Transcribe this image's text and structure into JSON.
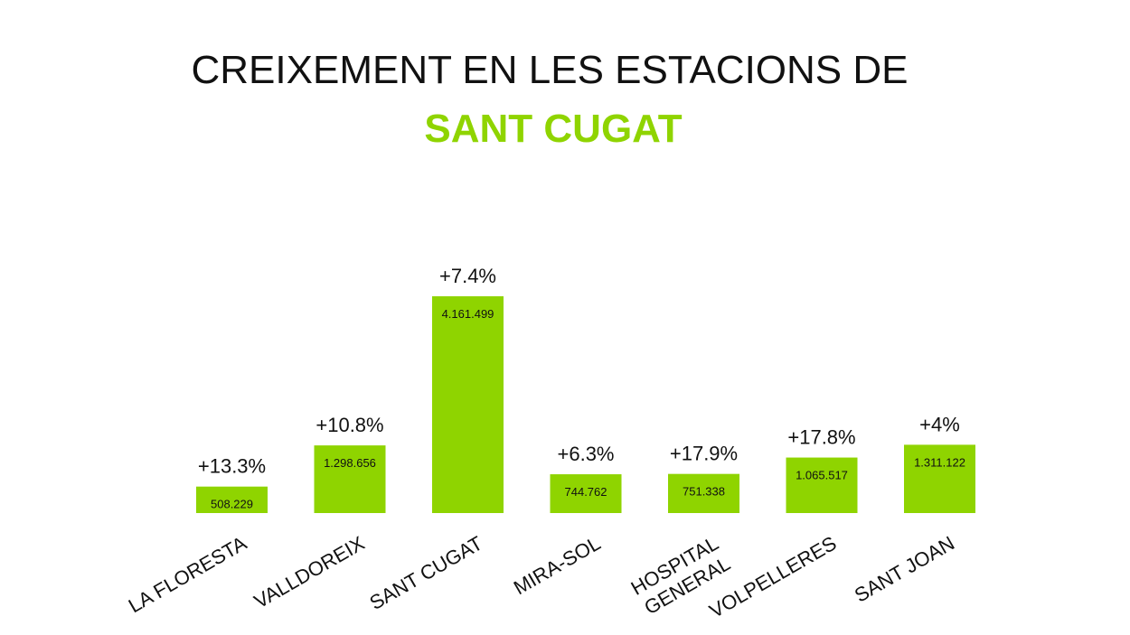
{
  "colors": {
    "accent": "#8fd400",
    "text": "#111111"
  },
  "chart_data": {
    "type": "bar",
    "title": "CREIXEMENT EN LES ESTACIONS DE",
    "subtitle": "SANT CUGAT",
    "categories": [
      [
        "LA FLORESTA"
      ],
      [
        "VALLDOREIX"
      ],
      [
        "SANT CUGAT"
      ],
      [
        "MIRA-SOL"
      ],
      [
        "HOSPITAL",
        "GENERAL"
      ],
      [
        "VOLPELLERES"
      ],
      [
        "SANT JOAN"
      ]
    ],
    "values": [
      508229,
      1298656,
      4161499,
      744762,
      751338,
      1065517,
      1311122
    ],
    "value_labels": [
      "508.229",
      "1.298.656",
      "4.161.499",
      "744.762",
      "751.338",
      "1.065.517",
      "1.311.122"
    ],
    "growth_labels": [
      "+13.3%",
      "+10.8%",
      "+7.4%",
      "+6.3%",
      "+17.9%",
      "+17.8%",
      "+4%"
    ],
    "xlabel": "",
    "ylabel": "",
    "ylim": [
      0,
      4161499
    ],
    "grid": false,
    "legend": "none"
  }
}
